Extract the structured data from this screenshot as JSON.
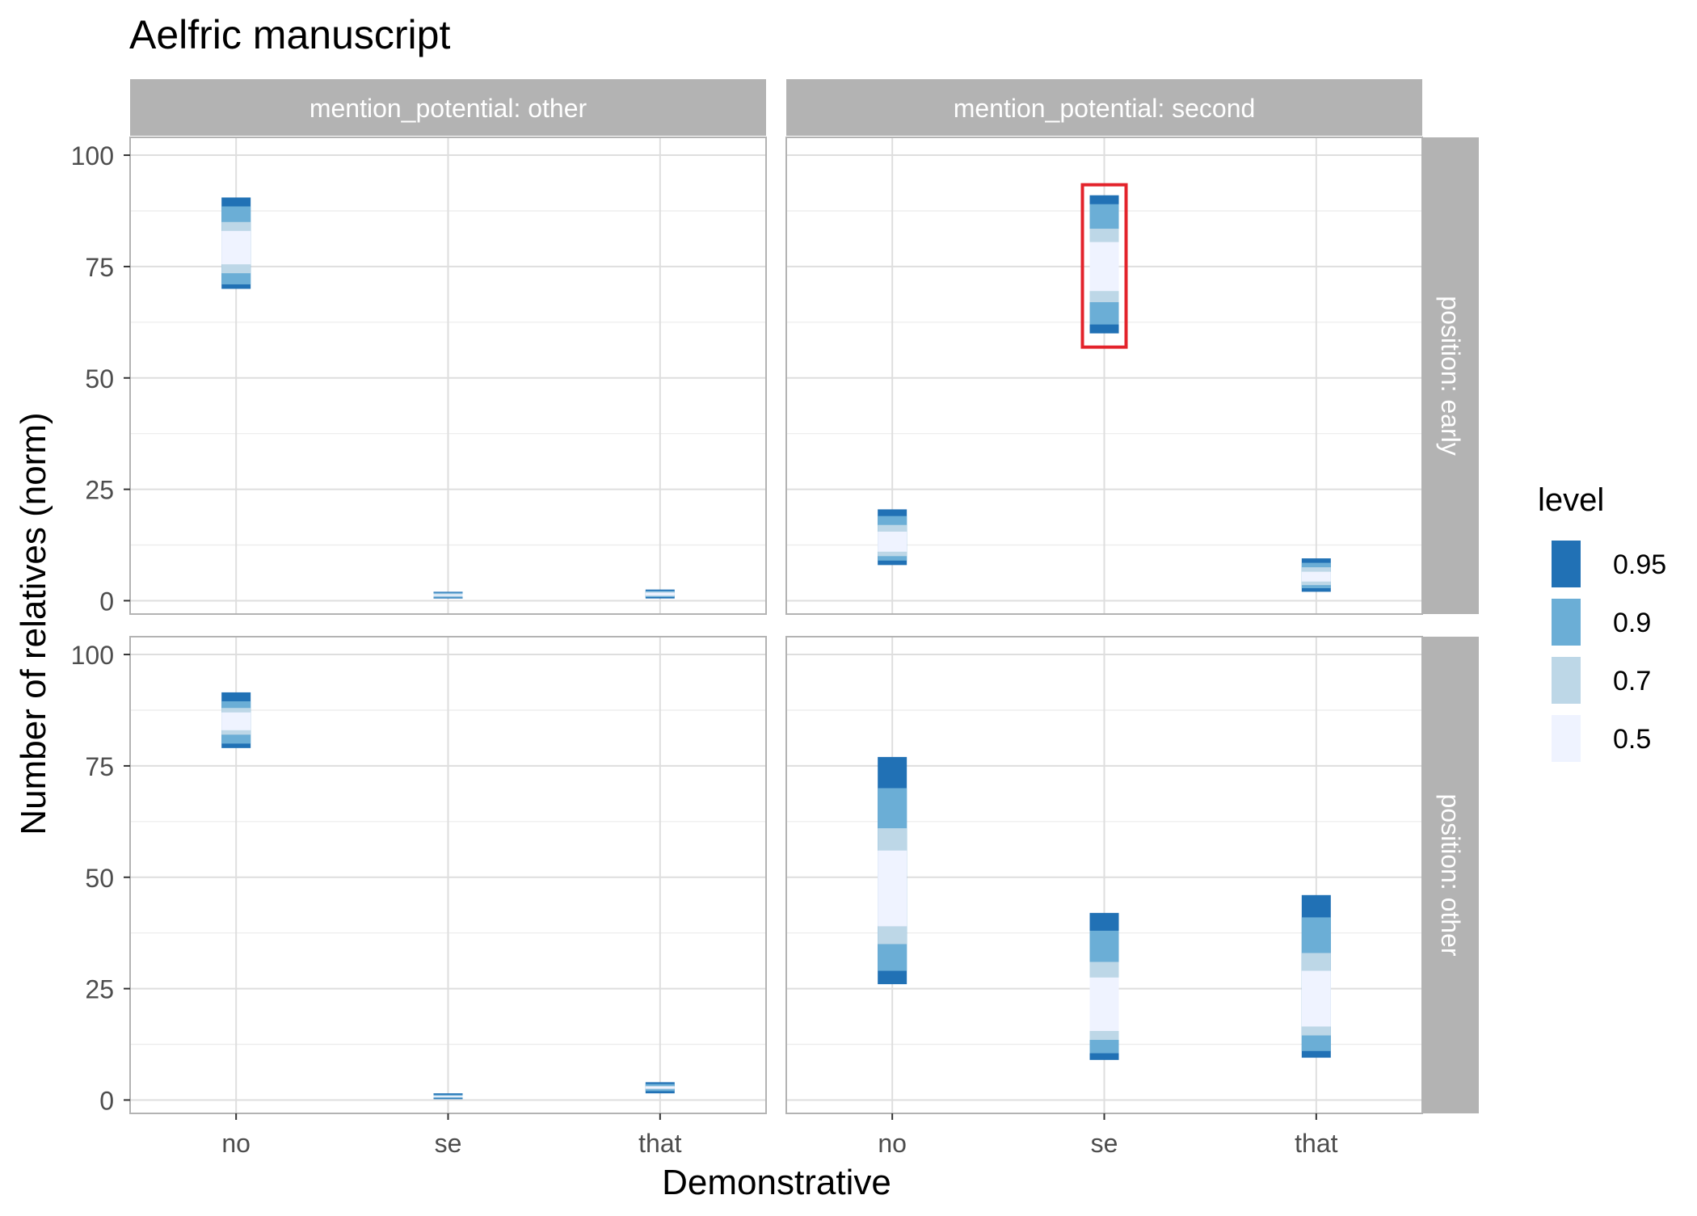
{
  "chart_data": {
    "type": "interval",
    "title": "Aelfric manuscript",
    "xlabel": "Demonstrative",
    "ylabel": "Number of relatives (norm)",
    "categories": [
      "no",
      "se",
      "that"
    ],
    "ylim": [
      -3,
      104
    ],
    "yticks": [
      0,
      25,
      50,
      75,
      100
    ],
    "grid": true,
    "legend": {
      "title": "level",
      "placement": "right",
      "entries": [
        {
          "label": "0.95",
          "color": "#2171b5"
        },
        {
          "label": "0.9",
          "color": "#6baed6"
        },
        {
          "label": "0.7",
          "color": "#bdd7e7"
        },
        {
          "label": "0.5",
          "color": "#eff3ff"
        }
      ]
    },
    "col_strips": [
      "mention_potential: other",
      "mention_potential: second"
    ],
    "row_strips": [
      "position: early",
      "position: other"
    ],
    "highlight": {
      "panel": 1,
      "category": "se",
      "color": "#e3232b"
    },
    "panels": [
      {
        "col": "mention_potential: other",
        "row": "position: early",
        "intervals": [
          {
            "category": "no",
            "levels": {
              "0.95": [
                70,
                90.5
              ],
              "0.9": [
                71,
                88.5
              ],
              "0.7": [
                73.5,
                85
              ],
              "0.5": [
                75.5,
                83
              ]
            }
          },
          {
            "category": "se",
            "levels": {
              "0.95": [
                0.5,
                2
              ],
              "0.9": [
                0.7,
                1.8
              ],
              "0.7": [
                0.9,
                1.6
              ],
              "0.5": [
                1.1,
                1.4
              ]
            }
          },
          {
            "category": "that",
            "levels": {
              "0.95": [
                0.5,
                2.5
              ],
              "0.9": [
                0.8,
                2.2
              ],
              "0.7": [
                1,
                2
              ],
              "0.5": [
                1.2,
                1.8
              ]
            }
          }
        ]
      },
      {
        "col": "mention_potential: second",
        "row": "position: early",
        "intervals": [
          {
            "category": "no",
            "levels": {
              "0.95": [
                8,
                20.5
              ],
              "0.9": [
                9,
                19
              ],
              "0.7": [
                10,
                17
              ],
              "0.5": [
                11,
                15.5
              ]
            }
          },
          {
            "category": "se",
            "levels": {
              "0.95": [
                60,
                91
              ],
              "0.9": [
                62,
                89
              ],
              "0.7": [
                67,
                83.5
              ],
              "0.5": [
                69.5,
                80.5
              ]
            }
          },
          {
            "category": "that",
            "levels": {
              "0.95": [
                2,
                9.5
              ],
              "0.9": [
                2.8,
                8.5
              ],
              "0.7": [
                3.5,
                7.5
              ],
              "0.5": [
                4.3,
                6.5
              ]
            }
          }
        ]
      },
      {
        "col": "mention_potential: other",
        "row": "position: other",
        "intervals": [
          {
            "category": "no",
            "levels": {
              "0.95": [
                79,
                91.5
              ],
              "0.9": [
                80,
                89.5
              ],
              "0.7": [
                82,
                88
              ],
              "0.5": [
                83,
                87
              ]
            }
          },
          {
            "category": "se",
            "levels": {
              "0.95": [
                0.2,
                1.5
              ],
              "0.9": [
                0.4,
                1.2
              ],
              "0.7": [
                0.6,
                1
              ],
              "0.5": [
                0.7,
                0.9
              ]
            }
          },
          {
            "category": "that",
            "levels": {
              "0.95": [
                1.5,
                4
              ],
              "0.9": [
                2,
                3.6
              ],
              "0.7": [
                2.4,
                3.2
              ],
              "0.5": [
                2.6,
                3
              ]
            }
          }
        ]
      },
      {
        "col": "mention_potential: second",
        "row": "position: other",
        "intervals": [
          {
            "category": "no",
            "levels": {
              "0.95": [
                26,
                77
              ],
              "0.9": [
                29,
                70
              ],
              "0.7": [
                35,
                61
              ],
              "0.5": [
                39,
                56
              ]
            }
          },
          {
            "category": "se",
            "levels": {
              "0.95": [
                9,
                42
              ],
              "0.9": [
                10.5,
                38
              ],
              "0.7": [
                13.5,
                31
              ],
              "0.5": [
                15.5,
                27.5
              ]
            }
          },
          {
            "category": "that",
            "levels": {
              "0.95": [
                9.5,
                46
              ],
              "0.9": [
                11,
                41
              ],
              "0.7": [
                14.5,
                33
              ],
              "0.5": [
                16.5,
                29
              ]
            }
          }
        ]
      }
    ]
  }
}
